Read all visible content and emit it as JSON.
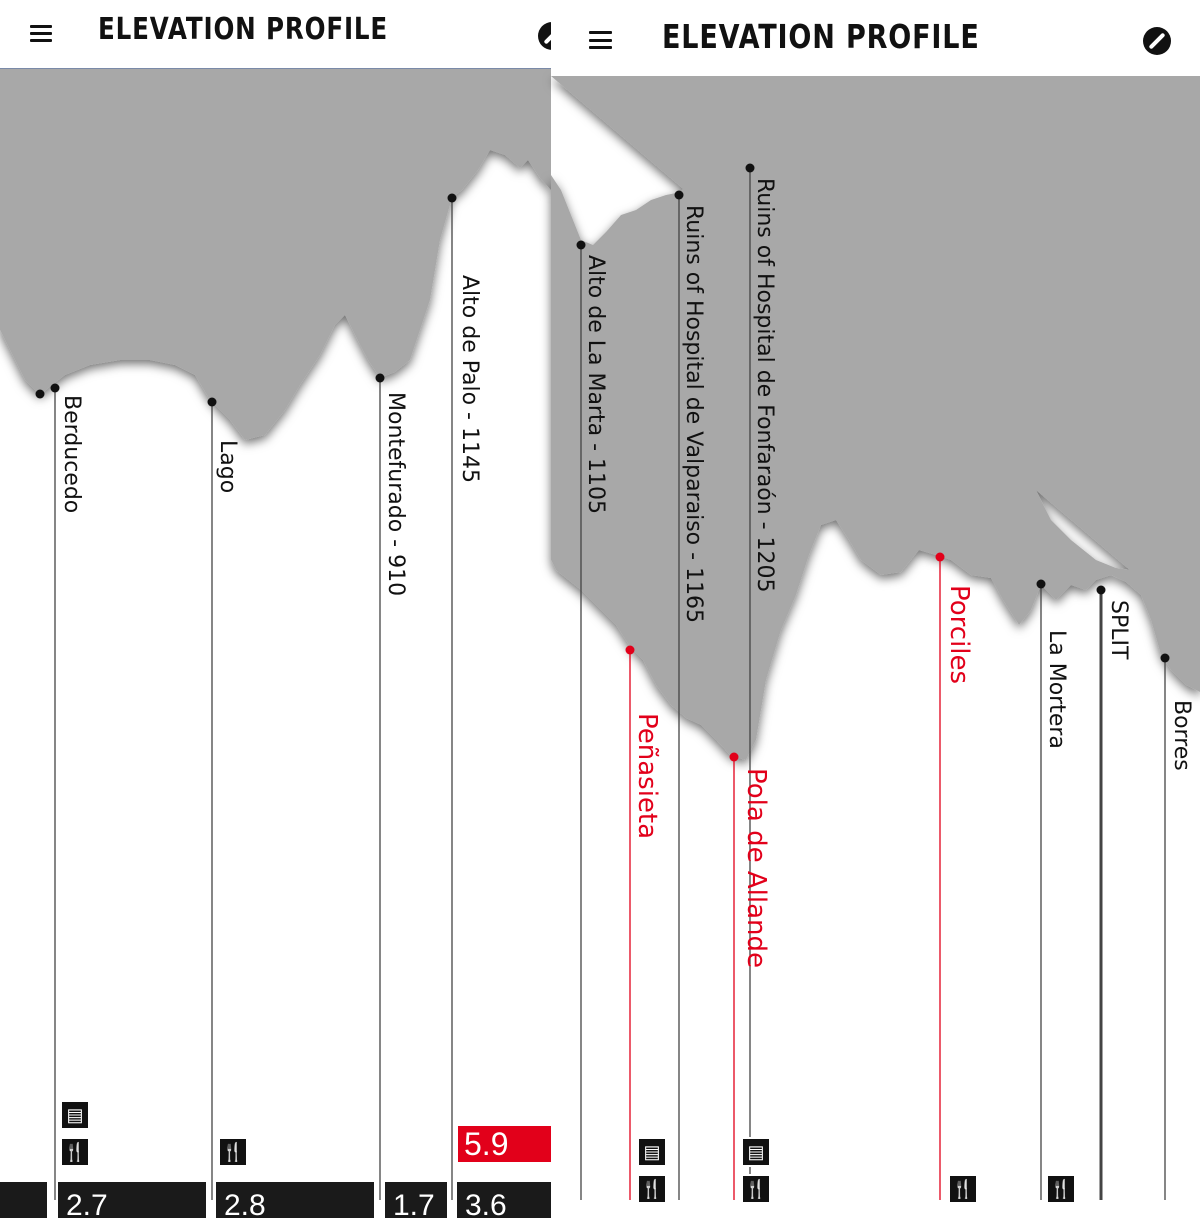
{
  "header": {
    "title": "ELEVATION PROFILE"
  },
  "left_panel": {
    "waypoints": [
      {
        "label": "Berducedo"
      },
      {
        "label": "Lago"
      },
      {
        "label": "Montefurado - 910"
      },
      {
        "label": "Alto de Palo - 1145"
      }
    ],
    "highlight_distance": "5.9",
    "segment_distances": [
      "2.7",
      "2.8",
      "1.7",
      "3.6"
    ]
  },
  "right_panel": {
    "waypoints": [
      {
        "label": "Alto de La Marta - 1105"
      },
      {
        "label": "Ruins of Hospital de Valparaiso - 1165"
      },
      {
        "label": "Ruins of Hospital de Fonfaraón - 1205"
      },
      {
        "label": "Peñasieta"
      },
      {
        "label": "Pola de Allande"
      },
      {
        "label": "Porciles"
      },
      {
        "label": "La Mortera"
      },
      {
        "label": "SPLIT"
      },
      {
        "label": "Borres"
      }
    ]
  },
  "colors": {
    "sky": "#a8a8a8",
    "accent_red": "#e2001a",
    "text": "#111111"
  },
  "icons": [
    "menu-icon",
    "compass-icon",
    "bed-icon",
    "fork-knife-icon"
  ]
}
